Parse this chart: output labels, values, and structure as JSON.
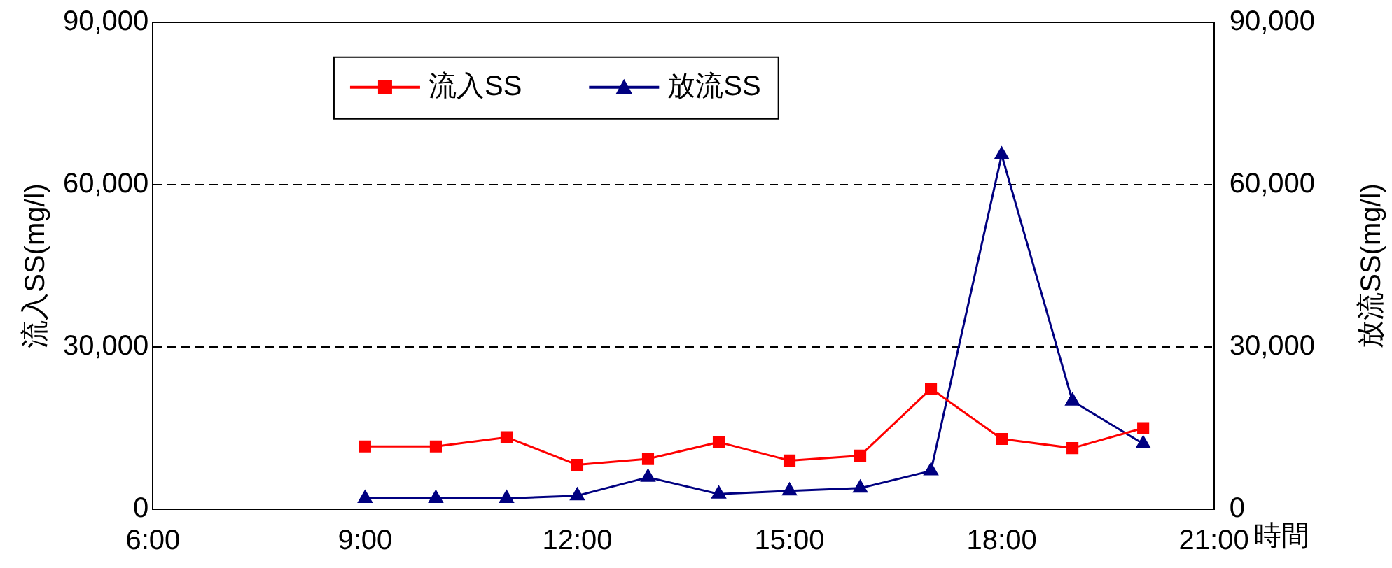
{
  "chart_data": {
    "type": "line",
    "xlabel": "時間",
    "ylabel": "流入SS(mg/l)",
    "y2label": "放流SS(mg/l)",
    "x": [
      9,
      10,
      11,
      12,
      13,
      14,
      15,
      16,
      17,
      18,
      19,
      20
    ],
    "series": [
      {
        "name": "流入SS",
        "color": "#ff0000",
        "marker": "square",
        "values": [
          11600,
          11600,
          13300,
          8200,
          9300,
          12400,
          9000,
          9900,
          22300,
          13000,
          11300,
          15000
        ]
      },
      {
        "name": "放流SS",
        "color": "#000080",
        "marker": "triangle",
        "axis": "y2",
        "values": [
          2000,
          2000,
          2000,
          2500,
          5900,
          2800,
          3400,
          3900,
          7100,
          65500,
          20000,
          12100
        ]
      }
    ],
    "xlim": [
      6,
      21
    ],
    "xticks": [
      {
        "value": 6,
        "label": "6:00"
      },
      {
        "value": 9,
        "label": "9:00"
      },
      {
        "value": 12,
        "label": "12:00"
      },
      {
        "value": 15,
        "label": "15:00"
      },
      {
        "value": 18,
        "label": "18:00"
      },
      {
        "value": 21,
        "label": "21:00"
      }
    ],
    "ylim": [
      0,
      90000
    ],
    "yticks": [
      {
        "value": 0,
        "label": "0"
      },
      {
        "value": 30000,
        "label": "30,000"
      },
      {
        "value": 60000,
        "label": "60,000"
      },
      {
        "value": 90000,
        "label": "90,000"
      }
    ],
    "y2lim": [
      0,
      90000
    ],
    "y2ticks": [
      {
        "value": 0,
        "label": "0"
      },
      {
        "value": 30000,
        "label": "30,000"
      },
      {
        "value": 60000,
        "label": "60,000"
      },
      {
        "value": 90000,
        "label": "90,000"
      }
    ],
    "grid": "y",
    "legend": "top",
    "line_style": "solid"
  }
}
